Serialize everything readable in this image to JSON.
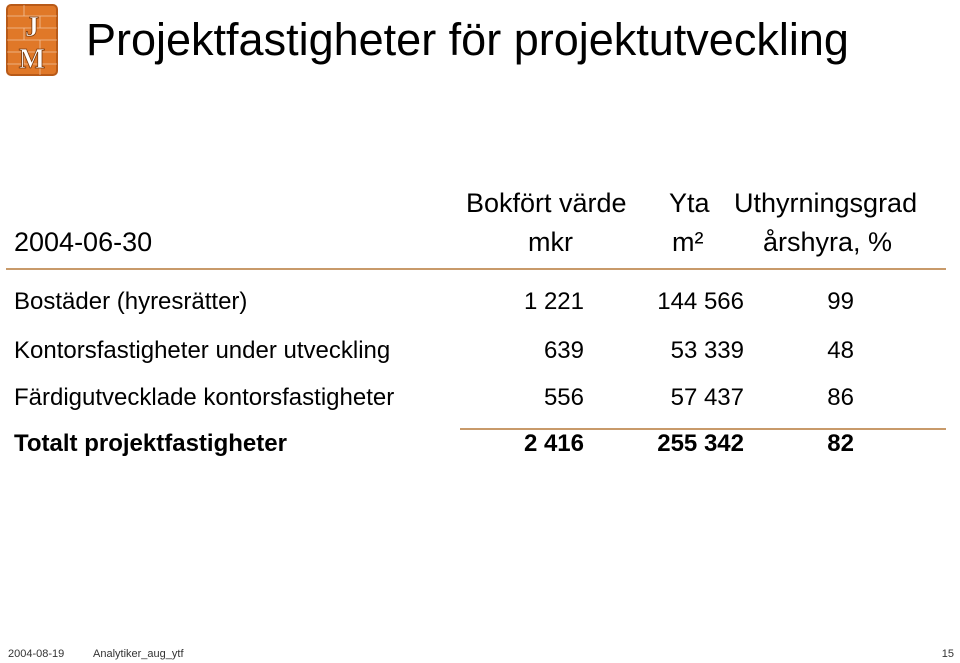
{
  "logo": {
    "letter_top": "J",
    "letter_bottom": "M",
    "color": "#e07828",
    "name": "jm-logo"
  },
  "title": "Projektfastigheter för projektutveckling",
  "header": {
    "date": "2004-06-30",
    "col1_line1": "Bokfört värde",
    "col1_line2": "mkr",
    "col2_line1": "Yta",
    "col2_line2": "m²",
    "col3_line1": "Uthyrningsgrad",
    "col3_line2": "årshyra, %"
  },
  "rows": [
    {
      "label": "Bostäder (hyresrätter)",
      "value": "1 221",
      "area": "144 566",
      "rate": "99"
    },
    {
      "label": "Kontorsfastigheter under utveckling",
      "value": "639",
      "area": "53 339",
      "rate": "48"
    },
    {
      "label": "Färdigutvecklade kontorsfastigheter",
      "value": "556",
      "area": "57 437",
      "rate": "86"
    }
  ],
  "total": {
    "label": "Totalt projektfastigheter",
    "value": "2 416",
    "area": "255 342",
    "rate": "82"
  },
  "footer": {
    "date": "2004-08-19",
    "name": "Analytiker_aug_ytf",
    "page": "15"
  },
  "colors": {
    "rule": "#c89a6a",
    "accent": "#e07828"
  }
}
